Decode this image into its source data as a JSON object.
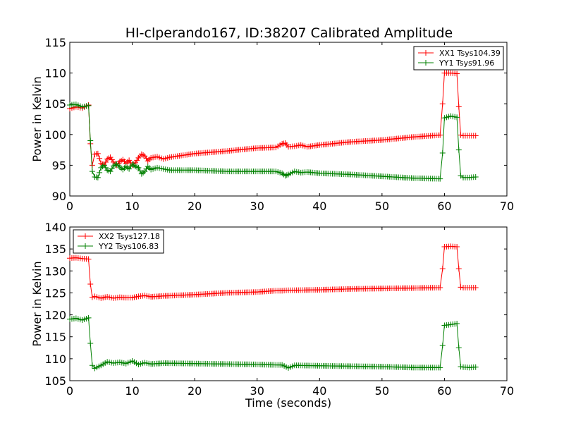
{
  "figure_title": "HI-clperando167, ID:38207 Calibrated Amplitude",
  "colors": {
    "red": "#ff0000",
    "green": "#008000"
  },
  "chart_data": [
    {
      "type": "line",
      "title": "HI-clperando167, ID:38207 Calibrated Amplitude",
      "xlabel": "",
      "ylabel": "Power in Kelvin",
      "xlim": [
        0,
        70
      ],
      "ylim": [
        90,
        115
      ],
      "xticks": [
        "0",
        "10",
        "20",
        "30",
        "40",
        "50",
        "60",
        "70"
      ],
      "yticks": [
        "90",
        "95",
        "100",
        "105",
        "110",
        "115"
      ],
      "grid": false,
      "legend_position": "top-right",
      "marker": "+",
      "series": [
        {
          "name": "XX1 Tsys104.39",
          "color": "#ff0000",
          "x": [
            0,
            1,
            2,
            3,
            3.3,
            3.6,
            4,
            4.5,
            5,
            5.5,
            6,
            6.5,
            7,
            7.5,
            8,
            8.5,
            9,
            9.5,
            10,
            10.5,
            11,
            11.5,
            12,
            12.5,
            13,
            14,
            15,
            16,
            20,
            25,
            30,
            33,
            34,
            34.5,
            35,
            36,
            37,
            38,
            40,
            45,
            50,
            55,
            59.3,
            59.7,
            60,
            61,
            62,
            62.3,
            62.6,
            63,
            64,
            65
          ],
          "y": [
            104.2,
            104.5,
            104.3,
            104.8,
            98.5,
            95.0,
            96.8,
            96.9,
            95.3,
            95.0,
            96.0,
            96.3,
            95.5,
            95.0,
            95.6,
            95.9,
            95.3,
            95.8,
            95.0,
            95.4,
            96.2,
            96.8,
            96.5,
            95.7,
            96.2,
            96.4,
            96.0,
            96.3,
            96.9,
            97.3,
            97.8,
            97.9,
            98.5,
            98.6,
            98.0,
            98.1,
            98.3,
            98.0,
            98.3,
            98.8,
            99.1,
            99.6,
            99.9,
            105.0,
            110.0,
            110.0,
            109.9,
            104.5,
            99.9,
            99.8,
            99.8,
            99.8
          ]
        },
        {
          "name": "YY1 Tsys91.96",
          "color": "#008000",
          "x": [
            0,
            1,
            2,
            3,
            3.3,
            3.6,
            4,
            4.5,
            5,
            5.5,
            6,
            6.5,
            7,
            7.5,
            8,
            8.5,
            9,
            9.5,
            10,
            10.5,
            11,
            11.5,
            12,
            12.5,
            13,
            14,
            15,
            16,
            20,
            25,
            30,
            33,
            34,
            34.5,
            35,
            36,
            37,
            38,
            40,
            45,
            50,
            55,
            59.3,
            59.7,
            60,
            61,
            62,
            62.3,
            62.6,
            63,
            64,
            65
          ],
          "y": [
            104.8,
            104.9,
            104.5,
            104.7,
            99.0,
            94.0,
            93.1,
            93.0,
            94.6,
            95.0,
            94.2,
            94.0,
            94.9,
            95.2,
            94.7,
            94.3,
            94.8,
            94.4,
            95.2,
            94.8,
            94.6,
            93.6,
            94.0,
            94.8,
            94.3,
            94.6,
            94.4,
            94.2,
            94.2,
            94.0,
            94.0,
            94.0,
            93.7,
            93.3,
            93.5,
            94.0,
            93.8,
            93.9,
            93.7,
            93.5,
            93.2,
            92.9,
            92.8,
            97.0,
            102.7,
            103.0,
            102.8,
            97.5,
            93.3,
            93.0,
            93.0,
            93.1
          ]
        }
      ]
    },
    {
      "type": "line",
      "title": "",
      "xlabel": "Time (seconds)",
      "ylabel": "Power in Kelvin",
      "xlim": [
        0,
        70
      ],
      "ylim": [
        105,
        140
      ],
      "xticks": [
        "0",
        "10",
        "20",
        "30",
        "40",
        "50",
        "60",
        "70"
      ],
      "yticks": [
        "105",
        "110",
        "115",
        "120",
        "125",
        "130",
        "135",
        "140"
      ],
      "grid": false,
      "legend_position": "top-left",
      "marker": "+",
      "series": [
        {
          "name": "XX2 Tsys127.18",
          "color": "#ff0000",
          "x": [
            0,
            1,
            2,
            3,
            3.3,
            3.6,
            4,
            5,
            6,
            7,
            8,
            9,
            10,
            11,
            12,
            13,
            15,
            20,
            25,
            30,
            33,
            34,
            35,
            36,
            40,
            45,
            50,
            55,
            59.3,
            59.7,
            60,
            61,
            62,
            62.3,
            62.6,
            63,
            64,
            65
          ],
          "y": [
            132.9,
            133.0,
            132.8,
            132.7,
            127.0,
            124.0,
            124.2,
            123.8,
            124.1,
            123.8,
            124.0,
            123.9,
            123.9,
            124.2,
            124.4,
            124.1,
            124.3,
            124.6,
            125.0,
            125.2,
            125.5,
            125.5,
            125.6,
            125.6,
            125.7,
            125.9,
            126.0,
            126.1,
            126.2,
            130.5,
            135.5,
            135.6,
            135.5,
            130.5,
            126.3,
            126.2,
            126.2,
            126.2
          ]
        },
        {
          "name": "YY2 Tsys106.83",
          "color": "#008000",
          "x": [
            0,
            1,
            2,
            3,
            3.3,
            3.6,
            4,
            5,
            6,
            7,
            8,
            9,
            10,
            11,
            12,
            13,
            15,
            20,
            25,
            30,
            33,
            34,
            35,
            36,
            40,
            45,
            50,
            55,
            59.3,
            59.7,
            60,
            61,
            62,
            62.3,
            62.6,
            63,
            64,
            65
          ],
          "y": [
            119.0,
            119.2,
            118.8,
            119.3,
            113.5,
            108.5,
            107.8,
            108.5,
            109.3,
            109.0,
            109.2,
            108.9,
            109.5,
            108.7,
            109.1,
            108.8,
            109.0,
            108.9,
            108.8,
            108.7,
            108.6,
            108.6,
            107.9,
            108.5,
            108.4,
            108.3,
            108.2,
            108.0,
            108.0,
            113.0,
            117.6,
            117.8,
            118.0,
            112.5,
            108.2,
            108.1,
            108.0,
            108.1
          ]
        }
      ]
    }
  ]
}
